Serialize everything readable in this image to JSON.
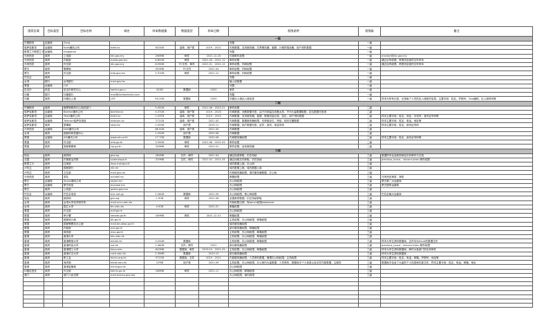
{
  "headers": [
    "国家区域",
    "目标类型",
    "目标名称",
    "域名",
    "样本数据量",
    "数据类型",
    "样本日期",
    "权限说明",
    "权限级",
    "备注"
  ],
  "sections": [
    {
      "label": "一級",
      "rows": [
        [
          "巴基斯坦",
          "运营商",
          "Zong",
          "",
          "",
          "",
          "",
          "完整",
          "一级",
          ""
        ],
        [
          "哈萨克斯坦",
          "运营商",
          "Kcell通信公司",
          "kcell.kz",
          "820GB",
          "话单、用户类",
          "2019 - 2021",
          "内网数据、支持服务器、共享服务器、客服、计费终端设备、用户资料数据",
          "一级",
          ""
        ],
        [
          "斯里兰卡斯里兰卡",
          "运营商",
          "mogaeron",
          "",
          "",
          "",
          "",
          "完整",
          "一级",
          ""
        ],
        [
          "马来西亚",
          "政府",
          "工信部",
          "kkr.gov.my",
          "268MB",
          "邮件",
          "2021.12.20",
          "内网邮件权限",
          "一级",
          "manlan@kkr.gov.my"
        ],
        [
          "马来西亚",
          "政府",
          "内政部",
          "moha.gov.my",
          "6.85GB",
          "邮件",
          "2021.04 - 2021.12",
          "邮件权限",
          "一级",
          "通过合同权限，再提供全部的文件样本"
        ],
        [
          "马来西亚",
          "政府",
          "外交部",
          "kln.gov.my",
          "6.59GB",
          "PC文件、邮件",
          "2021.01 - 2021.12",
          "邮件权限、内网权限",
          "一级",
          "通过合同权限，再提供全部的文件样本"
        ],
        [
          "蒙古",
          "政府",
          "警察局",
          "",
          "509MB",
          "PC文件",
          "2021.04",
          "邮件权限、内网权限",
          "一级",
          ""
        ],
        [
          "蒙古",
          "政府",
          "外交部",
          "mfa.gov.mn",
          "2.37GB",
          "邮件",
          "2021.12",
          "邮件权限、内网权限",
          "一级",
          ""
        ],
        [
          "巴拉圭",
          "政府",
          "",
          "",
          "",
          "",
          "",
          "完整",
          "一级",
          ""
        ],
        [
          "台湾",
          "银行",
          "台湾银行",
          "mail.gov.tw",
          "",
          "",
          "",
          "植入信数据",
          "一级",
          ""
        ],
        [
          "泰国",
          "运营商",
          "CAT",
          "",
          "",
          "",
          "",
          "完整",
          "一级",
          ""
        ],
        [
          "尼泊尔",
          "科技",
          "尼泊尔研究中心",
          "kathrd.gov.n",
          "42GB",
          "数据库",
          "2020",
          "邮件",
          "一级",
          ""
        ],
        [
          "印度",
          "银行",
          "印度银行",
          "mail@cbhkontacts.com",
          "",
          "",
          "",
          "完整",
          "一级",
          ""
        ],
        [
          "印度",
          "政府",
          "印度出入境",
          "UCF",
          "95.2GB",
          "数据库",
          "2020",
          "印度出入境出入境信息",
          "一级",
          "样本为所有记录，记录每个人员的出入境相关信息，主要字段：姓名，护照号，Visa编码，出入境时间等"
        ]
      ]
    },
    {
      "label": "二級",
      "rows": [
        [
          "巴基斯坦",
          "政府",
          "俄罗斯联邦中心相关部门",
          "",
          "5.45GB",
          "邮件",
          "2021.06 - 2022.01",
          "邮件权限",
          "二级",
          ""
        ],
        [
          "哈萨克斯坦",
          "运营商",
          "Beeline通讯公司",
          "beeline.kz",
          "4.37GB",
          "话单、用户类",
          "2019 - 2020",
          "内网数据、消费数据可查，由于内网监控设备太多，不可大量数据取数，定位数据可查询",
          "二级",
          ""
        ],
        [
          "哈萨克斯坦",
          "运营商",
          "Tele2通讯公司",
          "tele2.kz",
          "1.09TB",
          "话单、用户类",
          "2019 - 2020",
          "内网数据、支持服务器、客服、数据流量记录、定位、用户资料数据",
          "二级",
          "样本主要字段：姓名，地址，手机号，身份证号码等"
        ],
        [
          "哈萨克斯坦",
          "运营商",
          "Telecom哈萨克电信",
          "telecom.kz",
          "271GB",
          "话单、用户类",
          "2021.05",
          "内网数据、数据服务器权限，可获取定位、短信、相关位置数据",
          "二级",
          "样本主要字段：姓名，电话，地址等"
        ],
        [
          "哈萨克斯坦",
          "政府",
          "禁毒局",
          "smpl.kz",
          "1.92GB",
          "用户类",
          "2019.11",
          "内网数据、用户数据可查，证件，身份，电话号码",
          "二级",
          "样本主要字段：姓名，身份证号码"
        ],
        [
          "马来西亚",
          "运营商",
          "DiGi通讯公司",
          "",
          "86.5GB",
          "话单、用户类",
          "2021.05",
          "内网数据",
          "二级",
          ""
        ],
        [
          "台湾",
          "政府",
          "国家科研发展中心",
          "",
          "1.25GB",
          "用户类",
          "2020.06",
          "内网数据",
          "二级",
          ""
        ],
        [
          "泰国",
          "运营商",
          "AIS通讯公司",
          "www.ais.co.th",
          "17.7GB",
          "数据库",
          "2020.06",
          "内网服务器权限",
          "二级",
          "样本主要字段：姓名，身份证号码等"
        ],
        [
          "泰国",
          "政府",
          "外交部",
          "mfa.go.th",
          "3.39GB",
          "邮件",
          "2021.06 - 2021.09",
          "邮件权限",
          "二级",
          ""
        ],
        [
          "泰国",
          "政府",
          "国家警察局",
          "rtp.go.th",
          "328MB",
          "邮件",
          "2022.01",
          "邮件权限、目标服务器",
          "二级",
          ""
        ]
      ]
    },
    {
      "label": "三級",
      "rows": [
        [
          "埃及",
          "政府",
          "政府网",
          "gov.eg",
          "284MB",
          "文件、邮件",
          "2021.04",
          "通过信息获取，仍在持续",
          "三级",
          "数据样本包含政府网站中的邮件与文档"
        ],
        [
          "法国",
          "政府",
          "巴黎政治学院",
          "sciencespo.fr",
          "319MB",
          "文件、邮件",
          "2021.01 - 2021.04",
          "通过远程文件获取，仍在持续",
          "三级",
          "precious_rouca，unicorn.bireu 邮件权限"
        ],
        [
          "斯里兰卡",
          "政府",
          "住房部",
          "ilsus.mof.gov.lk",
          "",
          "",
          "",
          "域内数据上报、办公网",
          "三级",
          ""
        ],
        [
          "卢旺达",
          "政府",
          "国家银行",
          "nib.rw",
          "",
          "",
          "",
          "域内数据上报、域内数据入库",
          "三级",
          ""
        ],
        [
          "卢旺达",
          "政府",
          "卫生部",
          "moh.gov.rw",
          "",
          "",
          "",
          "内网服务器权限，域内服务器数据，办公网",
          "三级",
          ""
        ],
        [
          "马来西亚",
          "政府",
          "军队",
          "mindef.my",
          "",
          "",
          "",
          "邮箱权限",
          "三级",
          "马来西亚海军，海军"
        ],
        [
          "蒙古",
          "运营商",
          "Skytel通讯公司",
          "skytel.mn",
          "",
          "",
          "",
          "办公网权限",
          "三级",
          "蒙古第二大运营商"
        ],
        [
          "蒙古",
          "运营商",
          "蒙古电信",
          "mocase.mn",
          "",
          "",
          "",
          "办公网权限",
          "三级",
          "蒙古国有运营商"
        ],
        [
          "蒙古",
          "政府",
          "公安部",
          "police.gov.mn",
          "",
          "",
          "",
          "办公网权限",
          "三级",
          ""
        ],
        [
          "巴拉圭",
          "运营商",
          "巴拉圭电信",
          "mic.net.py",
          "2.26GB",
          "数据库",
          "2021.05",
          "办公网权限、核心网权限",
          "三级",
          "巴拉圭最大运营商"
        ],
        [
          "埃及",
          "政府",
          "政府网",
          "gen.eg",
          "1.9GB",
          "邮件",
          "2021.06",
          "全国政府数据，仍在持续获取",
          "三级",
          ""
        ],
        [
          "台湾",
          "政府",
          "台湾大学化学研究所",
          "mail.ncnu.edu.tw",
          "",
          "",
          "",
          "内网权限已掉，有bench权限websheet",
          "三级",
          ""
        ],
        [
          "台湾",
          "政府",
          "国立大学",
          "tku.edu.tw",
          "4.9GB",
          "邮件",
          "2022.01",
          "邮箱权限",
          "三级",
          ""
        ],
        [
          "泰国",
          "政府",
          "外交部",
          "mof.go.th",
          "",
          "",
          "",
          "办公网权限",
          "三级",
          ""
        ],
        [
          "泰国",
          "政府",
          "审计署",
          "senate.go.th",
          "169MB",
          "邮件",
          "2021.12.31",
          "邮箱权限",
          "三级",
          ""
        ],
        [
          "泰国",
          "政府",
          "国家统计局",
          "dit.go.th",
          "",
          "",
          "",
          "主机权限、办公网权限、邮箱权限",
          "三级",
          ""
        ],
        [
          "泰国",
          "政府",
          "国家警察总办公室",
          "mail.bnudlaa.go.th",
          "",
          "",
          "",
          "域内服务器权限",
          "三级",
          ""
        ],
        [
          "泰国",
          "政府",
          "内政部",
          "moi.go.th",
          "",
          "",
          "",
          "部分服务器权限、邮箱权限",
          "三级",
          ""
        ],
        [
          "泰国",
          "政府",
          "商务部",
          "moc.go.th",
          "",
          "",
          "",
          "主机权限、办公网权限、邮箱权限",
          "三级",
          ""
        ],
        [
          "香港",
          "政府",
          "香港大学",
          "hku.edu.hk",
          "",
          "",
          "",
          "主机权限、办公网权限、邮箱权限",
          "三级",
          ""
        ],
        [
          "香港",
          "政府",
          "香港教育大学",
          "eduhk.hk",
          "3.25GB",
          "数据库",
          "",
          "主机权限、办公网权限、邮箱权限",
          "三级",
          "样本为学生资料数据库，文件均为Excel的数据文件"
        ],
        [
          "香港",
          "政府",
          "香港科技大学",
          "ust.hk",
          "1.46GB",
          "文件、邮件",
          "2021",
          "部分服务器权限",
          "三级",
          "previous_rouca，unicorn.bireu 邮件权限"
        ],
        [
          "香港",
          "政府",
          "香港理工大学",
          "hkpu.edu",
          "643MB",
          "数据库、邮件",
          "2019.10 - 2021.05",
          "主机权限、办公网权限、邮箱权限",
          "三级",
          "样本为学生资料数据库，邮件为各部门的往来邮件"
        ],
        [
          "香港",
          "政府",
          "香港中文大学",
          "cuhk.edu.hk",
          "2.35MB",
          "数据库",
          "2019.12",
          "部分服务器权限",
          "三级",
          "样本为学生资料数据库"
        ],
        [
          "香港",
          "政府",
          "职工会",
          "hkctu.org.hk",
          "972GB",
          "数据库、文件",
          "2019 - 2021",
          "内部服务器权限，人员资料数据，管理办公网权限，主机权限",
          "三级",
          "样本主要字段：姓名，电话，邮箱，护照号，地址等"
        ],
        [
          "香港",
          "政府",
          "海洋局",
          "hkust.edu.hk",
          "37MB",
          "用户类",
          "2021.09",
          "主机权限、办公网权限、办公网内大量数据，人员资料，数据库中个人信息以及文件内部数据，主服务",
          "三级",
          "数据库中包含了大量的个人信息和内部文件，样本主要字段：姓名，电话，邮箱，地址"
        ],
        [
          "香港",
          "政府",
          "香港金管局",
          "hkmf.gov.hk",
          "",
          "",
          "",
          "办公网权限",
          "三级",
          ""
        ],
        [
          "印度尼西亚",
          "政府",
          "外交部",
          "kemlu.go.id",
          "168MB",
          "邮件",
          "2021.11",
          "办公网权限、邮箱权限",
          "三级",
          ""
        ],
        [
          "澳门",
          "政府",
          "澳门人民法院",
          "mail.macau.gov.mo",
          "",
          "",
          "",
          "办公网权限、域内权限",
          "三级",
          ""
        ]
      ]
    }
  ]
}
